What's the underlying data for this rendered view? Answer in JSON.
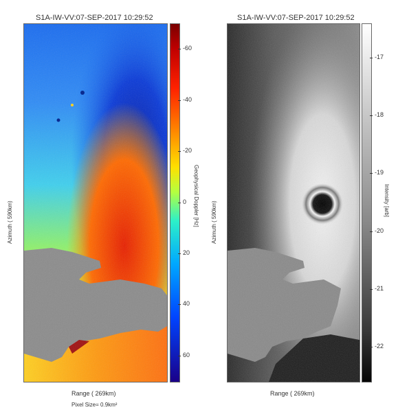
{
  "left_panel": {
    "title": "S1A-IW-VV:07-SEP-2017  10:29:52",
    "azimuth_label": "Azimuth ( 590km)",
    "range_label": "Range ( 269km)",
    "pixel_size": "Pixel Size= 0.9km²",
    "colorbar_label": "Geophysical Doppler [Hz]",
    "colorbar_ticks": [
      "60",
      "40",
      "20",
      "0",
      "-20",
      "-40",
      "-60"
    ],
    "colorbar_range": [
      -70,
      70
    ],
    "colormap": "jet"
  },
  "right_panel": {
    "title": "S1A-IW-VV:07-SEP-2017  10:29:52",
    "azimuth_label": "Azimuth ( 590km)",
    "range_label": "Range ( 269km)",
    "colorbar_label": "Intensity [arb]",
    "colorbar_ticks": [
      "-17",
      "-18",
      "-19",
      "-20",
      "-21",
      "-22"
    ],
    "colorbar_range": [
      -16.4,
      -22.6
    ],
    "colormap": "gray"
  }
}
